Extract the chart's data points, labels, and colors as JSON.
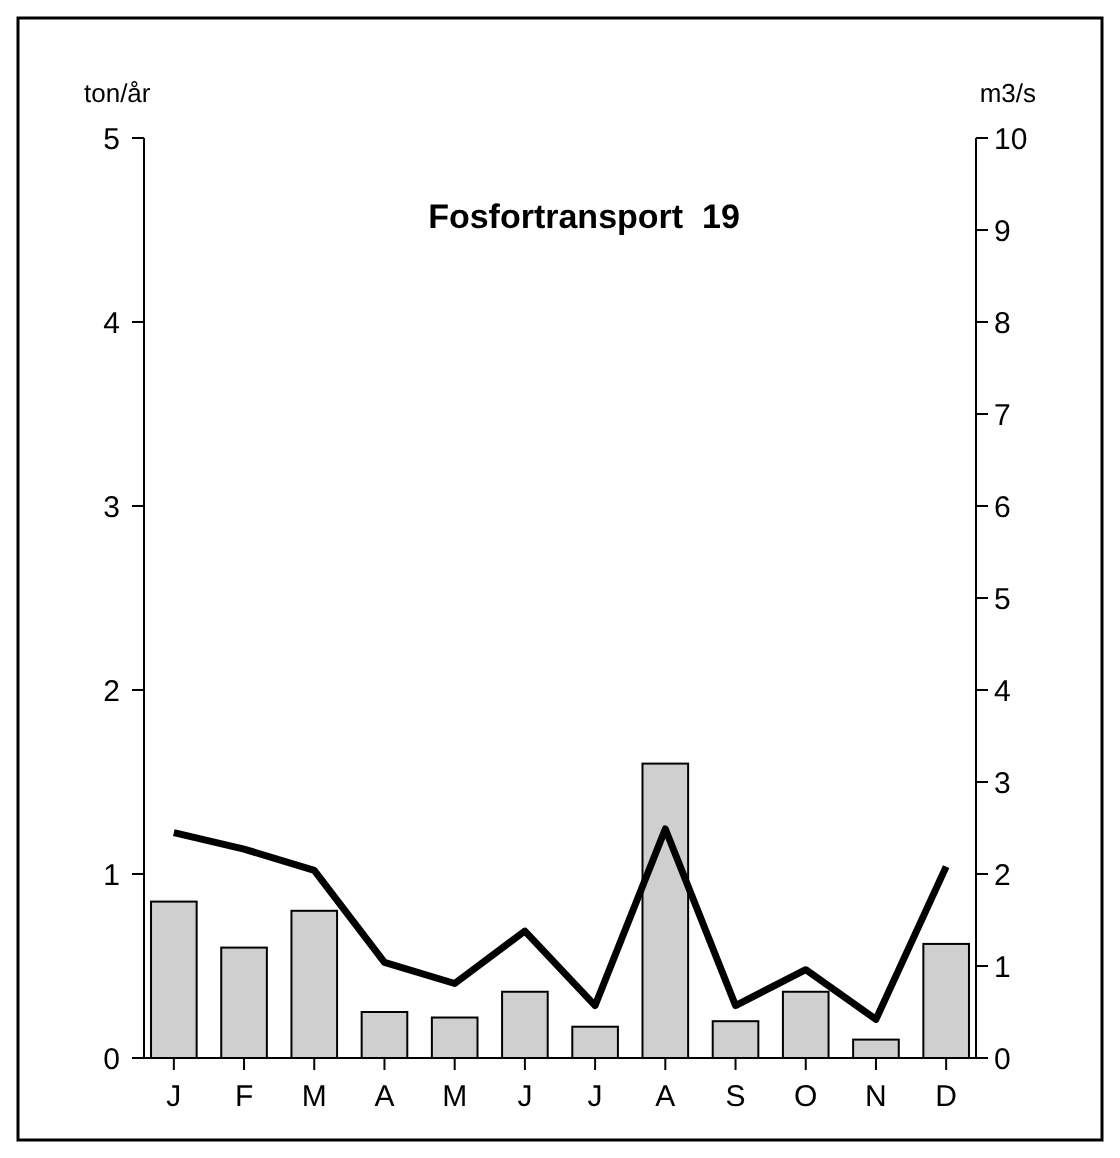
{
  "chart_data": {
    "type": "bar",
    "title": "Fosfortransport  19",
    "ylabel": "ton/år",
    "y2label": "m3/s",
    "categories": [
      "J",
      "F",
      "M",
      "A",
      "M",
      "J",
      "J",
      "A",
      "S",
      "O",
      "N",
      "D"
    ],
    "series": [
      {
        "color": "#cfcfcf",
        "values": [
          0.85,
          0.6,
          0.8,
          0.25,
          0.22,
          0.36,
          0.17,
          1.6,
          0.2,
          0.36,
          0.1,
          0.62
        ]
      },
      {
        "type": "line",
        "axis": "y2",
        "color": "#000000",
        "values": [
          2.45,
          2.27,
          2.04,
          1.04,
          0.81,
          1.38,
          0.57,
          2.49,
          0.57,
          0.96,
          0.42,
          2.08
        ]
      }
    ],
    "ylim": [
      0,
      5
    ],
    "yticks": [
      0,
      1,
      2,
      3,
      4,
      5
    ],
    "y2lim": [
      0,
      10
    ],
    "y2ticks": [
      0,
      1,
      2,
      3,
      4,
      5,
      6,
      7,
      8,
      9,
      10
    ],
    "grid": false,
    "marker": "none",
    "line_style": "solid"
  }
}
